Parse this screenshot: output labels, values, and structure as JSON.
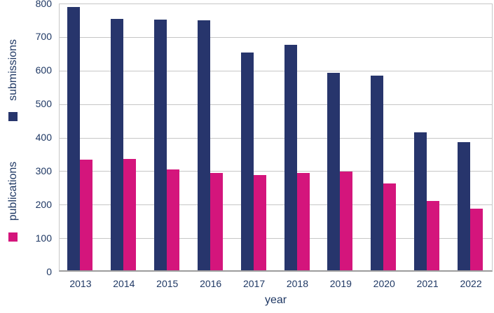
{
  "chart_data": {
    "type": "bar",
    "categories": [
      "2013",
      "2014",
      "2015",
      "2016",
      "2017",
      "2018",
      "2019",
      "2020",
      "2021",
      "2022"
    ],
    "series": [
      {
        "name": "submissions",
        "color": "#27356c",
        "values": [
          785,
          750,
          748,
          745,
          649,
          673,
          589,
          580,
          412,
          382
        ]
      },
      {
        "name": "publications",
        "color": "#d4157c",
        "values": [
          330,
          332,
          300,
          290,
          284,
          291,
          295,
          259,
          206,
          184
        ]
      }
    ],
    "title": "",
    "xlabel": "year",
    "ylabel_top": "submissions",
    "ylabel_bottom": "publications",
    "ylim": [
      0,
      800
    ],
    "yticks": [
      800,
      700,
      600,
      500,
      400,
      300,
      200,
      100,
      0
    ],
    "grid": true,
    "legend_position": "left",
    "colors": {
      "text": "#1f3864",
      "gridline": "#c6c6c6",
      "axis_line": "#9c9c9c",
      "background": "#ffffff"
    }
  }
}
